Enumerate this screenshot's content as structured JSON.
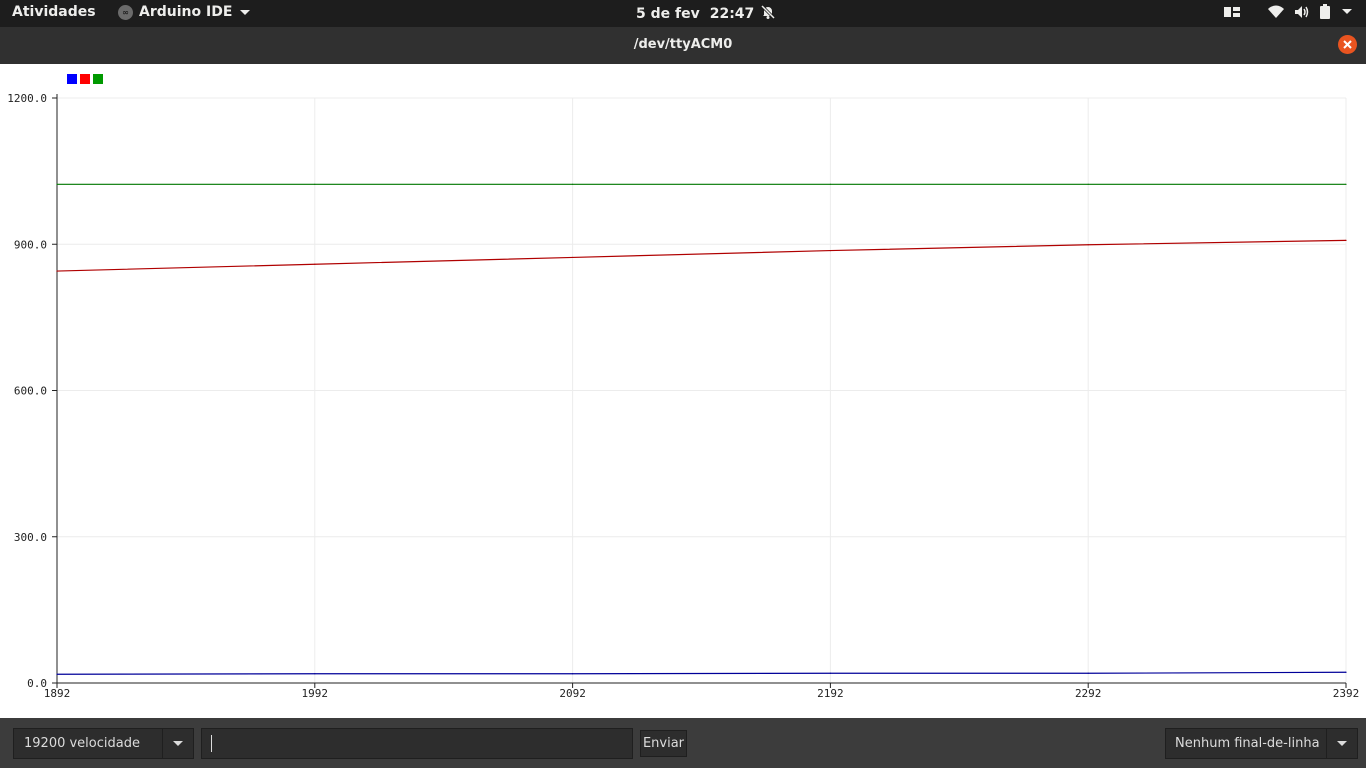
{
  "topbar": {
    "activities": "Atividades",
    "app_name": "Arduino IDE",
    "date": "5 de fev",
    "time": "22:47",
    "icons": [
      "bell-muted-icon",
      "window-switcher-icon",
      "wifi-icon",
      "volume-icon",
      "battery-icon",
      "system-menu-icon"
    ]
  },
  "window": {
    "title": "/dev/ttyACM0"
  },
  "legend_colors": [
    "#0000ff",
    "#ff0000",
    "#009900"
  ],
  "chart_data": {
    "type": "line",
    "x": [
      1892,
      1992,
      2092,
      2192,
      2292,
      2392
    ],
    "xlim": [
      1892,
      2392
    ],
    "ylim": [
      0,
      1200
    ],
    "x_ticks": [
      "1892",
      "1992",
      "2092",
      "2192",
      "2292",
      "2392"
    ],
    "y_ticks": [
      "0.0",
      "300.0",
      "600.0",
      "900.0",
      "1200.0"
    ],
    "y_tick_values": [
      0,
      300,
      600,
      900,
      1200
    ],
    "grid": true,
    "series": [
      {
        "color": "#000099",
        "values": [
          18,
          19,
          19,
          20,
          20,
          22
        ]
      },
      {
        "color": "#b00000",
        "values": [
          845,
          859,
          873,
          887,
          899,
          908
        ]
      },
      {
        "color": "#007700",
        "values": [
          1023,
          1023,
          1023,
          1023,
          1023,
          1023
        ]
      }
    ]
  },
  "bottom": {
    "baud": "19200 velocidade",
    "input_value": "",
    "send_label": "Enviar",
    "line_ending": "Nenhum final-de-linha"
  }
}
